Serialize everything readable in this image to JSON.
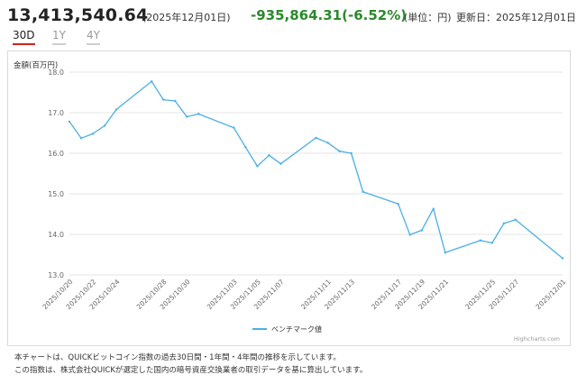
{
  "header": {
    "price": "13,413,540.64",
    "date": "(2025年12月01日)",
    "change": "-935,864.31(-6.52%)",
    "unit": "(単位：円)",
    "updated": "更新日：2025年12月01日"
  },
  "tabs": [
    {
      "label": "30D"
    },
    {
      "label": "1Y"
    },
    {
      "label": "4Y"
    }
  ],
  "colors": {
    "line": "#4aaee8",
    "change": "#2a8a2a",
    "active_tab": "#d0231b"
  },
  "chart_data": {
    "type": "line",
    "ylabel": "金額(百万円)",
    "ylim": [
      13.0,
      18.0
    ],
    "yticks": [
      "13.0",
      "14.0",
      "15.0",
      "16.0",
      "17.0",
      "18.0"
    ],
    "grid": true,
    "legend_position": "bottom",
    "credit": "Highcharts.com",
    "x": [
      "2025/10/20",
      "2025/10/21",
      "2025/10/22",
      "2025/10/23",
      "2025/10/24",
      "2025/10/25",
      "2025/10/26",
      "2025/10/27",
      "2025/10/28",
      "2025/10/29",
      "2025/10/30",
      "2025/10/31",
      "2025/11/01",
      "2025/11/02",
      "2025/11/03",
      "2025/11/04",
      "2025/11/05",
      "2025/11/06",
      "2025/11/07",
      "2025/11/08",
      "2025/11/09",
      "2025/11/10",
      "2025/11/11",
      "2025/11/12",
      "2025/11/13",
      "2025/11/14",
      "2025/11/15",
      "2025/11/16",
      "2025/11/17",
      "2025/11/18",
      "2025/11/19",
      "2025/11/20",
      "2025/11/21",
      "2025/11/22",
      "2025/11/23",
      "2025/11/24",
      "2025/11/25",
      "2025/11/26",
      "2025/11/27",
      "2025/11/28",
      "2025/11/29",
      "2025/11/30",
      "2025/12/01"
    ],
    "xtick_labels": [
      "2025/10/20",
      "2025/10/22",
      "2025/10/24",
      "2025/10/28",
      "2025/10/30",
      "2025/11/03",
      "2025/11/05",
      "2025/11/07",
      "2025/11/11",
      "2025/11/13",
      "2025/11/17",
      "2025/11/19",
      "2025/11/21",
      "2025/11/25",
      "2025/11/27",
      "2025/12/01"
    ],
    "series": [
      {
        "name": "ベンチマーク値",
        "points": [
          {
            "x": "2025/10/20",
            "y": 16.78
          },
          {
            "x": "2025/10/21",
            "y": 16.37
          },
          {
            "x": "2025/10/22",
            "y": 16.48
          },
          {
            "x": "2025/10/23",
            "y": 16.68
          },
          {
            "x": "2025/10/24",
            "y": 17.08
          },
          {
            "x": "2025/10/27",
            "y": 17.77
          },
          {
            "x": "2025/10/28",
            "y": 17.32
          },
          {
            "x": "2025/10/29",
            "y": 17.29
          },
          {
            "x": "2025/10/30",
            "y": 16.9
          },
          {
            "x": "2025/10/31",
            "y": 16.97
          },
          {
            "x": "2025/11/03",
            "y": 16.63
          },
          {
            "x": "2025/11/04",
            "y": 16.15
          },
          {
            "x": "2025/11/05",
            "y": 15.68
          },
          {
            "x": "2025/11/06",
            "y": 15.95
          },
          {
            "x": "2025/11/07",
            "y": 15.74
          },
          {
            "x": "2025/11/10",
            "y": 16.38
          },
          {
            "x": "2025/11/11",
            "y": 16.26
          },
          {
            "x": "2025/11/12",
            "y": 16.05
          },
          {
            "x": "2025/11/13",
            "y": 16.0
          },
          {
            "x": "2025/11/14",
            "y": 15.05
          },
          {
            "x": "2025/11/17",
            "y": 14.75
          },
          {
            "x": "2025/11/18",
            "y": 13.99
          },
          {
            "x": "2025/11/19",
            "y": 14.1
          },
          {
            "x": "2025/11/20",
            "y": 14.63
          },
          {
            "x": "2025/11/21",
            "y": 13.55
          },
          {
            "x": "2025/11/24",
            "y": 13.85
          },
          {
            "x": "2025/11/25",
            "y": 13.79
          },
          {
            "x": "2025/11/26",
            "y": 14.27
          },
          {
            "x": "2025/11/27",
            "y": 14.36
          },
          {
            "x": "2025/12/01",
            "y": 13.41
          }
        ]
      }
    ]
  },
  "notes": [
    "本チャートは、QUICKビットコイン指数の過去30日間・1年間・4年間の推移を示しています。",
    "この指数は、株式会社QUICKが選定した国内の暗号資産交換業者の取引データを基に算出しています。"
  ]
}
